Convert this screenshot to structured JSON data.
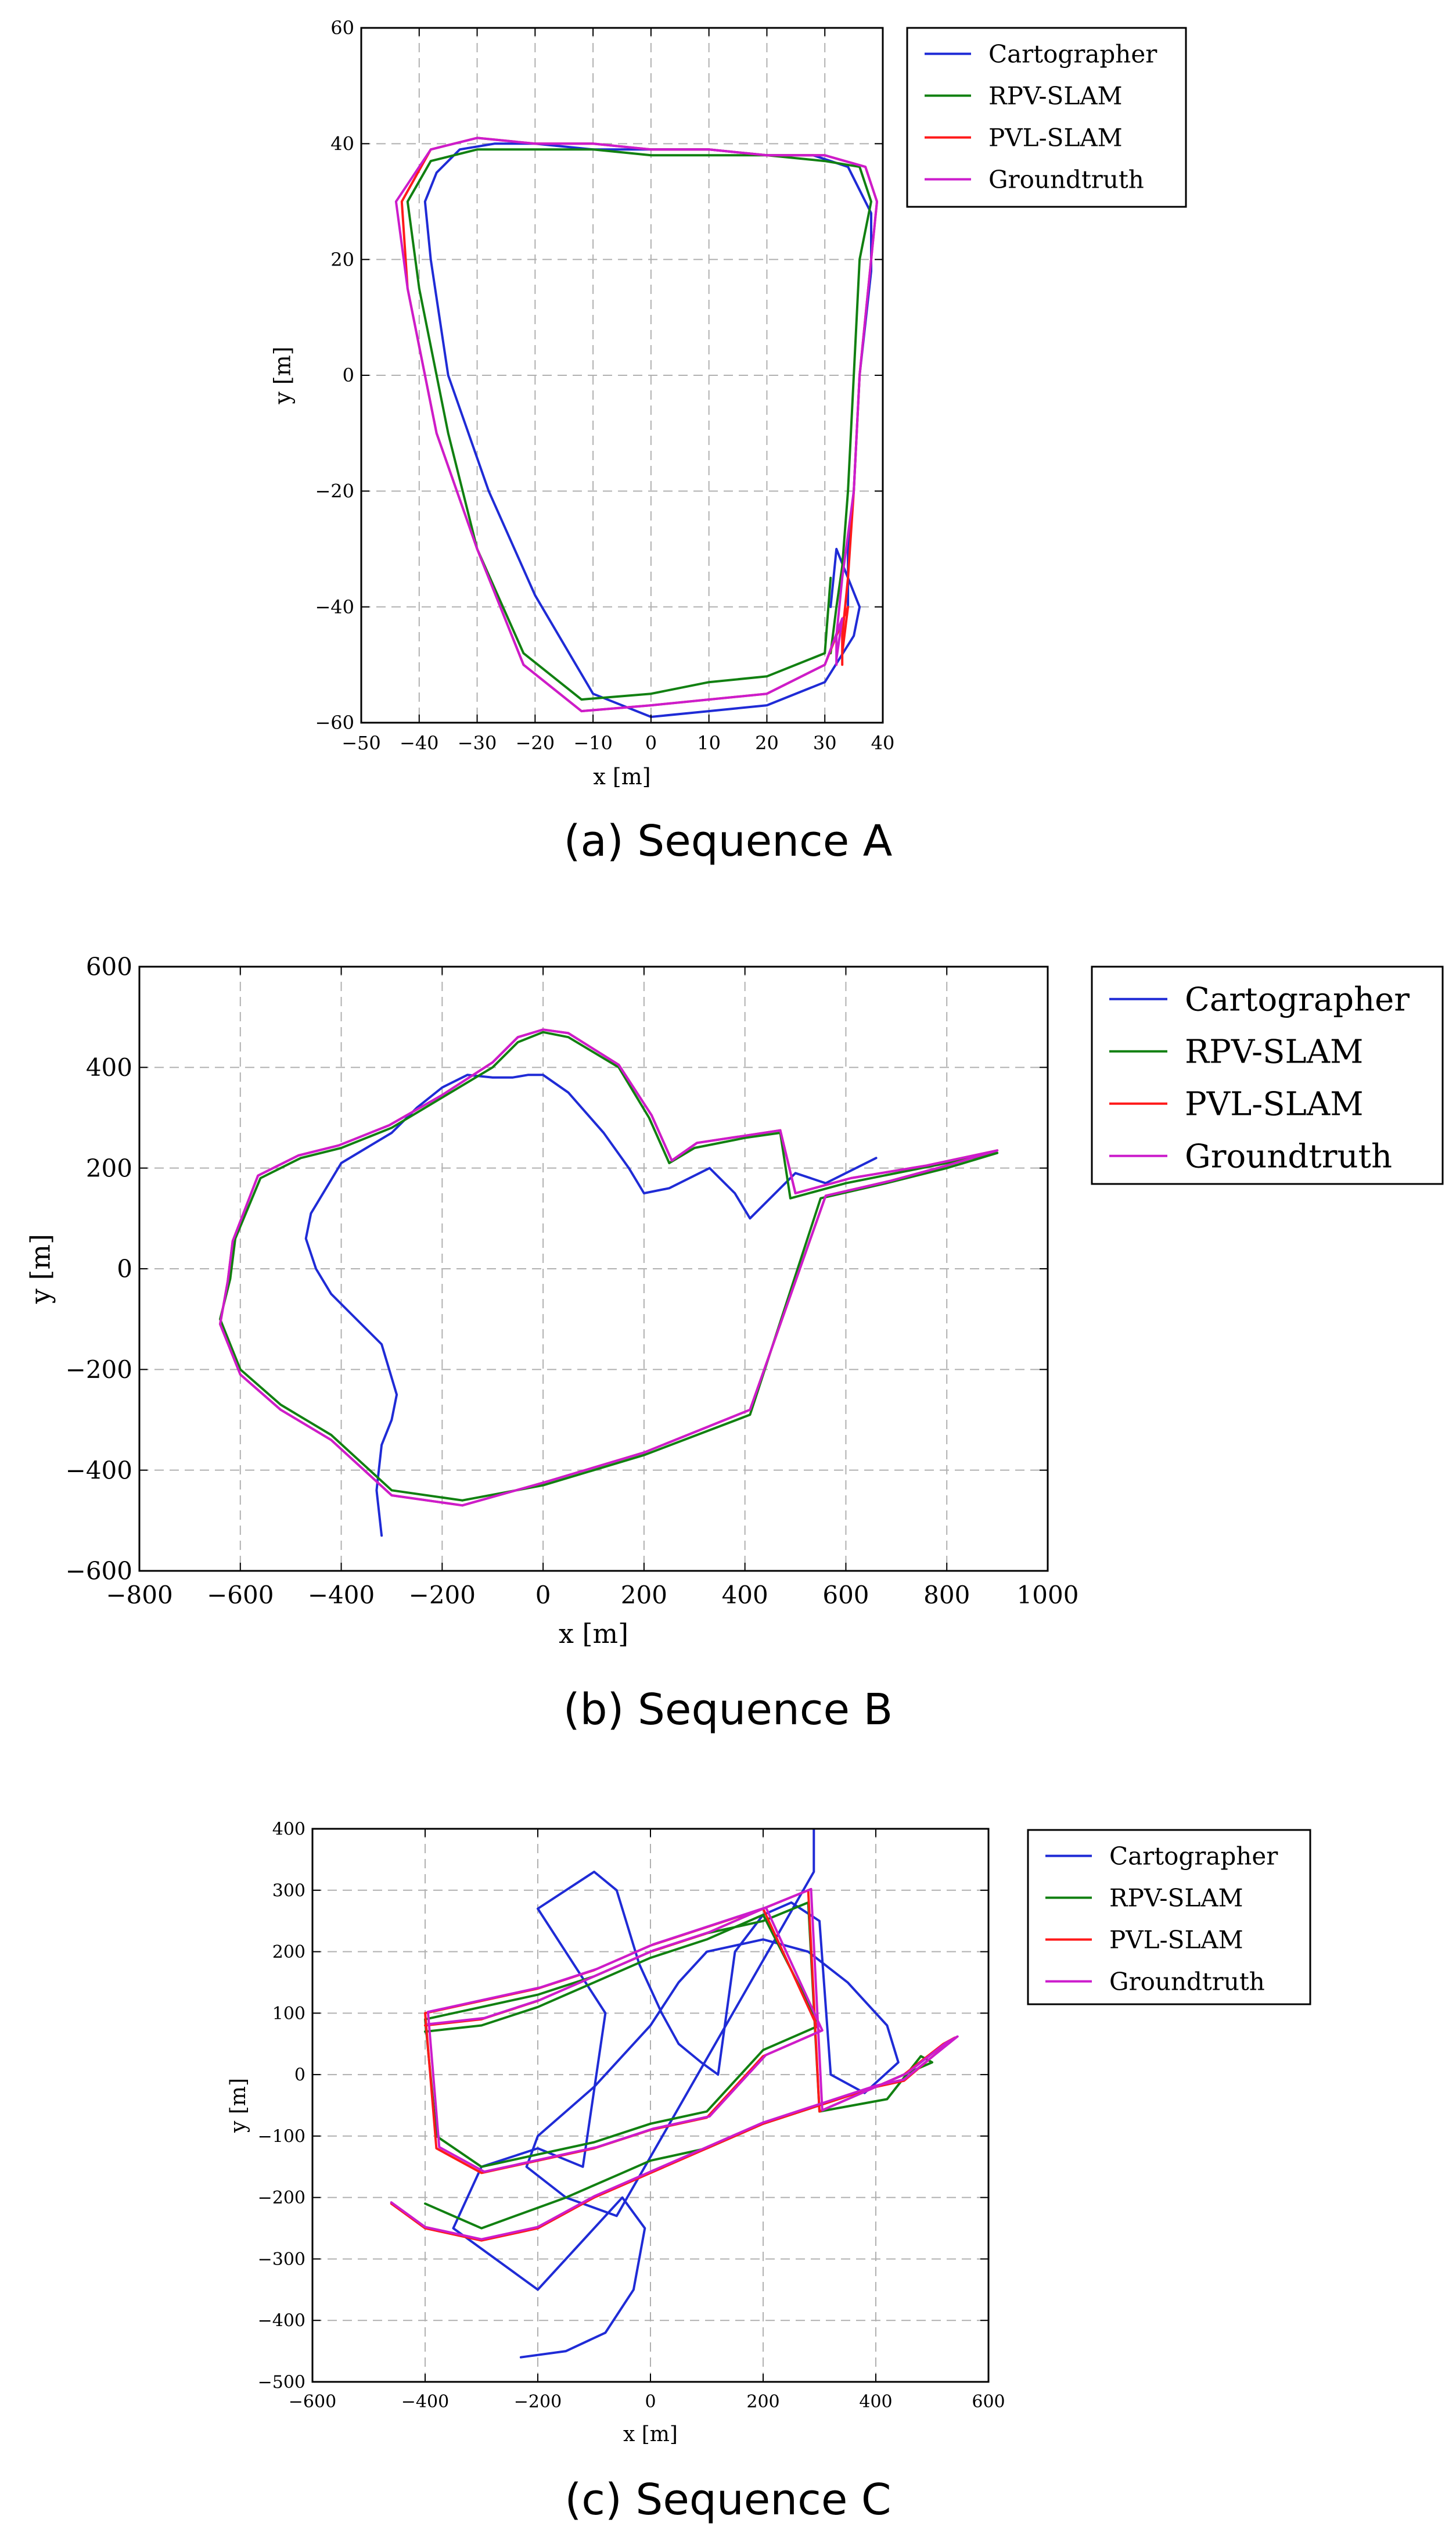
{
  "colors": {
    "Cartographer": "#1f2bd6",
    "RPV-SLAM": "#118011",
    "PVL-SLAM": "#ff1a1a",
    "Groundtruth": "#cc1ccc"
  },
  "chart_data": [
    {
      "type": "line",
      "caption": "(a) Sequence A",
      "xlabel": "x [m]",
      "ylabel": "y [m]",
      "xlim": [
        -50,
        40
      ],
      "ylim": [
        -60,
        60
      ],
      "xticks": [
        -50,
        -40,
        -30,
        -20,
        -10,
        0,
        10,
        20,
        30,
        40
      ],
      "yticks": [
        -60,
        -40,
        -20,
        0,
        20,
        40,
        60
      ],
      "xtick_labels": [
        "−50",
        "−40",
        "−30",
        "−20",
        "−10",
        "0",
        "10",
        "20",
        "30",
        "40"
      ],
      "ytick_labels": [
        "−60",
        "−40",
        "−20",
        "0",
        "20",
        "40",
        "60"
      ],
      "grid": true,
      "legend_placement": "outside-right-top",
      "series": [
        {
          "name": "Cartographer",
          "x": [
            34,
            34,
            34,
            35,
            36,
            38,
            38,
            34,
            28,
            20,
            10,
            0,
            -10,
            -20,
            -27,
            -33,
            -37,
            -39,
            -38,
            -35,
            -28,
            -20,
            -10,
            0,
            10,
            20,
            30,
            35,
            36,
            34,
            32,
            31
          ],
          "y": [
            -40,
            -35,
            -30,
            -20,
            0,
            18,
            28,
            36,
            38,
            38,
            39,
            39,
            39,
            40,
            40,
            39,
            35,
            30,
            20,
            0,
            -20,
            -38,
            -55,
            -59,
            -58,
            -57,
            -53,
            -45,
            -40,
            -35,
            -30,
            -40
          ]
        },
        {
          "name": "RPV-SLAM",
          "x": [
            31,
            32,
            33,
            34,
            35,
            36,
            38,
            36,
            30,
            20,
            10,
            0,
            -10,
            -20,
            -30,
            -38,
            -42,
            -40,
            -35,
            -30,
            -22,
            -12,
            0,
            10,
            20,
            30,
            31
          ],
          "y": [
            -48,
            -40,
            -33,
            -20,
            0,
            20,
            30,
            36,
            37,
            38,
            38,
            38,
            39,
            39,
            39,
            37,
            30,
            15,
            -10,
            -30,
            -48,
            -56,
            -55,
            -53,
            -52,
            -48,
            -35
          ]
        },
        {
          "name": "PVL-SLAM",
          "x": [
            33,
            33,
            34,
            35,
            36,
            38,
            39,
            37,
            30,
            20,
            10,
            0,
            -10,
            -20,
            -30,
            -38,
            -43,
            -42,
            -37,
            -30,
            -22,
            -12,
            0,
            10,
            20,
            30,
            34,
            33
          ],
          "y": [
            -50,
            -45,
            -35,
            -20,
            0,
            20,
            30,
            36,
            38,
            38,
            39,
            39,
            40,
            40,
            41,
            39,
            30,
            15,
            -10,
            -30,
            -50,
            -58,
            -57,
            -56,
            -55,
            -50,
            -40,
            -48
          ]
        },
        {
          "name": "Groundtruth",
          "x": [
            32,
            32,
            33,
            35,
            36,
            38,
            39,
            37,
            30,
            20,
            10,
            0,
            -10,
            -20,
            -30,
            -38,
            -44,
            -42,
            -37,
            -30,
            -22,
            -12,
            0,
            10,
            20,
            30,
            33,
            32
          ],
          "y": [
            -50,
            -45,
            -35,
            -20,
            0,
            20,
            30,
            36,
            38,
            38,
            39,
            39,
            40,
            40,
            41,
            39,
            30,
            15,
            -10,
            -30,
            -50,
            -58,
            -57,
            -56,
            -55,
            -50,
            -42,
            -49
          ]
        }
      ]
    },
    {
      "type": "line",
      "caption": "(b) Sequence B",
      "xlabel": "x [m]",
      "ylabel": "y [m]",
      "xlim": [
        -800,
        1000
      ],
      "ylim": [
        -600,
        600
      ],
      "xticks": [
        -800,
        -600,
        -400,
        -200,
        0,
        200,
        400,
        600,
        800,
        1000
      ],
      "yticks": [
        -600,
        -400,
        -200,
        0,
        200,
        400,
        600
      ],
      "xtick_labels": [
        "−800",
        "−600",
        "−400",
        "−200",
        "0",
        "200",
        "400",
        "600",
        "800",
        "1000"
      ],
      "ytick_labels": [
        "−600",
        "−400",
        "−200",
        "0",
        "200",
        "400",
        "600"
      ],
      "grid": true,
      "legend_placement": "outside-right-top",
      "series": [
        {
          "name": "Cartographer",
          "x": [
            -320,
            -330,
            -320,
            -300,
            -290,
            -320,
            -380,
            -420,
            -450,
            -470,
            -460,
            -400,
            -300,
            -250,
            -200,
            -150,
            -100,
            -60,
            -30,
            0,
            50,
            120,
            170,
            200,
            250,
            330,
            380,
            410,
            450,
            500,
            560,
            660
          ],
          "y": [
            -530,
            -440,
            -350,
            -300,
            -250,
            -150,
            -90,
            -50,
            0,
            60,
            110,
            210,
            270,
            320,
            360,
            385,
            380,
            380,
            385,
            385,
            350,
            270,
            200,
            150,
            160,
            200,
            150,
            100,
            140,
            190,
            170,
            220
          ]
        },
        {
          "name": "RPV-SLAM",
          "x": [
            -160,
            -300,
            -420,
            -520,
            -600,
            -640,
            -620,
            -610,
            -560,
            -480,
            -400,
            -300,
            -200,
            -100,
            -50,
            0,
            50,
            150,
            210,
            250,
            300,
            400,
            470,
            490,
            600,
            750,
            900,
            800,
            680,
            550,
            410,
            200,
            0,
            -160
          ],
          "y": [
            -460,
            -440,
            -330,
            -270,
            -200,
            -100,
            -20,
            60,
            180,
            220,
            240,
            280,
            340,
            400,
            450,
            470,
            460,
            400,
            300,
            210,
            240,
            260,
            270,
            140,
            170,
            200,
            230,
            200,
            170,
            140,
            -290,
            -370,
            -430,
            -460
          ]
        },
        {
          "name": "PVL-SLAM",
          "x": [
            -160,
            -300,
            -420,
            -520,
            -600,
            -640,
            -625,
            -615,
            -565,
            -485,
            -405,
            -305,
            -200,
            -100,
            -50,
            0,
            50,
            150,
            215,
            255,
            305,
            405,
            470,
            500,
            610,
            760,
            900,
            800,
            690,
            560,
            410,
            200,
            0,
            -160
          ],
          "y": [
            -470,
            -450,
            -340,
            -280,
            -210,
            -110,
            -25,
            55,
            185,
            225,
            245,
            285,
            345,
            410,
            460,
            475,
            468,
            405,
            305,
            215,
            250,
            265,
            275,
            150,
            180,
            205,
            235,
            205,
            175,
            145,
            -280,
            -365,
            -425,
            -470
          ]
        },
        {
          "name": "Groundtruth",
          "x": [
            -160,
            -300,
            -420,
            -520,
            -600,
            -640,
            -625,
            -615,
            -565,
            -485,
            -405,
            -305,
            -200,
            -100,
            -50,
            0,
            50,
            150,
            215,
            255,
            305,
            405,
            470,
            500,
            610,
            760,
            900,
            800,
            690,
            560,
            410,
            200,
            0,
            -160
          ],
          "y": [
            -470,
            -450,
            -340,
            -280,
            -210,
            -110,
            -25,
            55,
            185,
            225,
            245,
            285,
            345,
            410,
            460,
            475,
            468,
            405,
            305,
            215,
            250,
            265,
            275,
            150,
            180,
            205,
            235,
            205,
            175,
            145,
            -280,
            -365,
            -425,
            -470
          ]
        }
      ]
    },
    {
      "type": "line",
      "caption": "(c) Sequence C",
      "xlabel": "x [m]",
      "ylabel": "y [m]",
      "xlim": [
        -600,
        600
      ],
      "ylim": [
        -500,
        400
      ],
      "xticks": [
        -600,
        -400,
        -200,
        0,
        200,
        400,
        600
      ],
      "yticks": [
        -500,
        -400,
        -300,
        -200,
        -100,
        0,
        100,
        200,
        300,
        400
      ],
      "xtick_labels": [
        "−600",
        "−400",
        "−200",
        "0",
        "200",
        "400",
        "600"
      ],
      "ytick_labels": [
        "−500",
        "−400",
        "−300",
        "−200",
        "−100",
        "0",
        "100",
        "200",
        "300",
        "400"
      ],
      "grid": true,
      "legend_placement": "outside-right-top",
      "series": [
        {
          "name": "Cartographer",
          "x": [
            -230,
            -150,
            -80,
            -30,
            -10,
            -50,
            -200,
            -350,
            -300,
            -200,
            -120,
            -80,
            -200,
            -100,
            -60,
            -20,
            20,
            50,
            90,
            120,
            150,
            200,
            250,
            300,
            320,
            380,
            440,
            420,
            350,
            280,
            200,
            100,
            50,
            0,
            -50,
            -100,
            -150,
            -200,
            -220,
            -150,
            -60,
            290,
            290
          ],
          "y": [
            -460,
            -450,
            -420,
            -350,
            -250,
            -200,
            -350,
            -250,
            -150,
            -120,
            -150,
            100,
            270,
            330,
            300,
            180,
            100,
            50,
            20,
            0,
            200,
            260,
            280,
            250,
            0,
            -30,
            20,
            80,
            150,
            200,
            220,
            200,
            150,
            80,
            30,
            -20,
            -60,
            -100,
            -150,
            -200,
            -230,
            330,
            400
          ]
        },
        {
          "name": "RPV-SLAM",
          "x": [
            -400,
            -300,
            -150,
            -50,
            0,
            100,
            200,
            300,
            400,
            500,
            480,
            420,
            300,
            280,
            200,
            100,
            0,
            -100,
            -200,
            -300,
            -400,
            -380,
            -300,
            -200,
            -100,
            0,
            100,
            200,
            300,
            200,
            100,
            0,
            -100,
            -200,
            -300,
            -400
          ],
          "y": [
            -210,
            -250,
            -200,
            -160,
            -140,
            -120,
            -80,
            -50,
            -20,
            20,
            30,
            -40,
            -60,
            280,
            250,
            230,
            200,
            160,
            130,
            110,
            90,
            -100,
            -150,
            -130,
            -110,
            -80,
            -60,
            40,
            80,
            260,
            220,
            190,
            150,
            110,
            80,
            70
          ]
        },
        {
          "name": "PVL-SLAM",
          "x": [
            -460,
            -400,
            -300,
            -200,
            -100,
            0,
            100,
            200,
            300,
            400,
            450,
            540,
            520,
            450,
            300,
            280,
            200,
            100,
            0,
            -100,
            -200,
            -300,
            -400,
            -380,
            -300,
            -200,
            -100,
            0,
            100,
            200,
            300,
            200,
            100,
            0,
            -100,
            -200,
            -300,
            -400
          ],
          "y": [
            -210,
            -250,
            -270,
            -250,
            -200,
            -160,
            -120,
            -80,
            -50,
            -20,
            -10,
            60,
            50,
            0,
            -60,
            300,
            270,
            240,
            210,
            170,
            140,
            120,
            100,
            -120,
            -160,
            -140,
            -120,
            -90,
            -70,
            30,
            70,
            270,
            230,
            200,
            160,
            120,
            90,
            80
          ]
        },
        {
          "name": "Groundtruth",
          "x": [
            -460,
            -400,
            -300,
            -200,
            -100,
            0,
            100,
            200,
            300,
            400,
            450,
            545,
            525,
            455,
            305,
            285,
            205,
            105,
            5,
            -95,
            -195,
            -295,
            -395,
            -375,
            -295,
            -195,
            -95,
            5,
            105,
            205,
            305,
            205,
            105,
            5,
            -95,
            -195,
            -295,
            -395
          ],
          "y": [
            -208,
            -248,
            -268,
            -248,
            -198,
            -158,
            -118,
            -78,
            -48,
            -18,
            -8,
            62,
            52,
            2,
            -58,
            302,
            272,
            242,
            212,
            172,
            142,
            122,
            102,
            -118,
            -158,
            -138,
            -118,
            -88,
            -68,
            32,
            72,
            272,
            232,
            202,
            162,
            122,
            92,
            82
          ]
        }
      ]
    }
  ]
}
